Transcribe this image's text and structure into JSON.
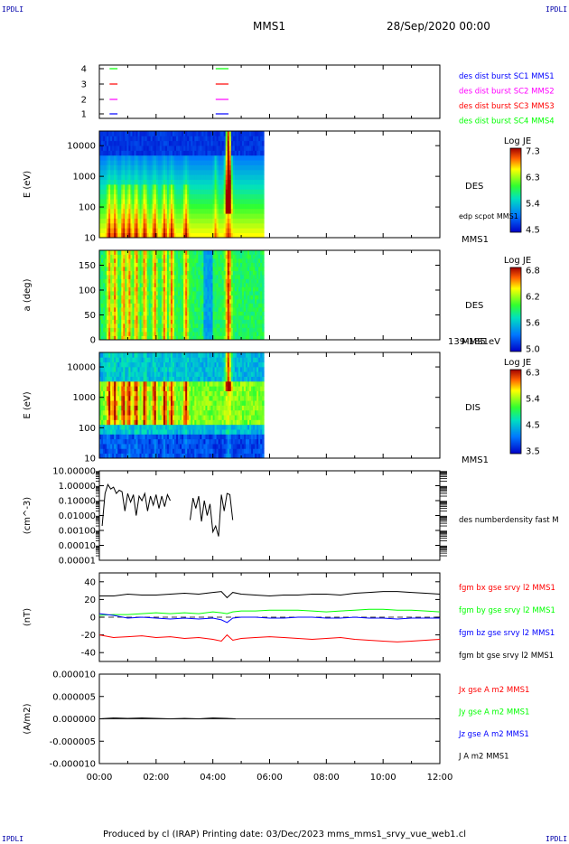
{
  "header": {
    "corner_label": "IPDLI",
    "spacecraft": "MMS1",
    "date": "28/Sep/2020 00:00"
  },
  "footer": {
    "text": "Produced by cl (IRAP)   Printing date: 03/Dec/2023   mms_mms1_srvy_vue_web1.cl"
  },
  "colors": {
    "blue": "#0000ff",
    "magenta": "#ff00ff",
    "red": "#ff0000",
    "green": "#00ff00",
    "black": "#000000"
  },
  "chart_data": [
    {
      "type": "line",
      "name": "availability",
      "y_ticks": [
        "4",
        "3",
        "2",
        "1"
      ],
      "legend": [
        {
          "label": "des dist burst SC1 MMS1",
          "color": "#0000ff"
        },
        {
          "label": "des dist burst SC2 MMS2",
          "color": "#ff00ff"
        },
        {
          "label": "des dist burst SC3 MMS3",
          "color": "#ff0000"
        },
        {
          "label": "des dist burst SC4 MMS4",
          "color": "#00ff00"
        }
      ],
      "intervals_hours": [
        [
          0.36,
          0.64
        ],
        [
          4.1,
          4.55
        ]
      ]
    },
    {
      "type": "heatmap",
      "name": "des-energy",
      "ylabel": "E (eV)",
      "yscale": "log",
      "ylim": [
        10,
        30000
      ],
      "y_ticks": [
        "10000",
        "1000",
        "100",
        "10"
      ],
      "data_end_hour": 5.8,
      "label": "DES",
      "overlay_label": "edp scpot MMS1",
      "right_label": "MMS1",
      "colorbar": {
        "title": "Log JE",
        "ticks": [
          "7.3",
          "6.3",
          "5.4",
          "4.5"
        ]
      }
    },
    {
      "type": "heatmap",
      "name": "des-pitch",
      "ylabel": "a (deg)",
      "ylim": [
        0,
        180
      ],
      "y_ticks": [
        "150",
        "100",
        "50",
        "0"
      ],
      "data_end_hour": 5.8,
      "label": "DES",
      "right_label": "MMS1",
      "range_label": "139-185 eV",
      "colorbar": {
        "title": "Log JE",
        "ticks": [
          "6.8",
          "6.2",
          "5.6",
          "5.0"
        ]
      }
    },
    {
      "type": "heatmap",
      "name": "dis-energy",
      "ylabel": "E (eV)",
      "yscale": "log",
      "ylim": [
        10,
        30000
      ],
      "y_ticks": [
        "10000",
        "1000",
        "100",
        "10"
      ],
      "data_end_hour": 5.8,
      "label": "DIS",
      "right_label": "MMS1",
      "colorbar": {
        "title": "Log JE",
        "ticks": [
          "6.3",
          "5.4",
          "4.5",
          "3.5"
        ]
      }
    },
    {
      "type": "line",
      "name": "density",
      "ylabel": "(cm^-3)",
      "yscale": "log",
      "ylim": [
        1e-05,
        10
      ],
      "y_ticks": [
        "10.00000",
        "1.00000",
        "0.10000",
        "0.01000",
        "0.00100",
        "0.00010",
        "0.00001"
      ],
      "series": [
        {
          "name": "des numberdensity fast M",
          "color": "#000000",
          "x": [
            0.1,
            0.2,
            0.3,
            0.4,
            0.5,
            0.6,
            0.7,
            0.8,
            0.9,
            1.0,
            1.1,
            1.2,
            1.3,
            1.4,
            1.5,
            1.6,
            1.7,
            1.8,
            1.9,
            2.0,
            2.1,
            2.2,
            2.3,
            2.4,
            2.5
          ],
          "y": [
            0.002,
            0.3,
            1.2,
            0.6,
            0.8,
            0.3,
            0.5,
            0.4,
            0.02,
            0.3,
            0.08,
            0.25,
            0.01,
            0.2,
            0.1,
            0.3,
            0.02,
            0.2,
            0.05,
            0.25,
            0.03,
            0.2,
            0.04,
            0.25,
            0.1
          ]
        },
        {
          "name": "",
          "color": "#000000",
          "x": [
            3.2,
            3.3,
            3.4,
            3.5,
            3.6,
            3.7,
            3.8,
            3.9,
            4.0,
            4.1,
            4.2,
            4.3,
            4.4,
            4.5,
            4.6,
            4.7
          ],
          "y": [
            0.005,
            0.15,
            0.03,
            0.2,
            0.004,
            0.1,
            0.01,
            0.06,
            0.0008,
            0.002,
            0.0004,
            0.25,
            0.02,
            0.3,
            0.25,
            0.005
          ]
        }
      ]
    },
    {
      "type": "line",
      "name": "magnetic-field",
      "ylabel": "(nT)",
      "ylim": [
        -50,
        50
      ],
      "y_ticks": [
        "40",
        "20",
        "0",
        "-20",
        "-40"
      ],
      "x": [
        0,
        0.5,
        1,
        1.5,
        2,
        2.5,
        3,
        3.5,
        4,
        4.3,
        4.5,
        4.7,
        5,
        5.5,
        6,
        6.5,
        7,
        7.5,
        8,
        8.5,
        9,
        9.5,
        10,
        10.5,
        11,
        11.5,
        12
      ],
      "series": [
        {
          "name": "fgm bx gse srvy l2 MMS1",
          "color": "#ff0000",
          "y": [
            -20,
            -23,
            -22,
            -21,
            -23,
            -22,
            -24,
            -23,
            -25,
            -27,
            -20,
            -26,
            -24,
            -23,
            -22,
            -23,
            -24,
            -25,
            -24,
            -23,
            -25,
            -26,
            -27,
            -28,
            -27,
            -26,
            -25
          ]
        },
        {
          "name": "fgm by gse srvy l2 MMS1",
          "color": "#00ff00",
          "y": [
            2,
            3,
            3,
            4,
            5,
            4,
            5,
            4,
            6,
            5,
            4,
            6,
            7,
            7,
            8,
            8,
            8,
            7,
            6,
            7,
            8,
            9,
            9,
            8,
            8,
            7,
            6
          ]
        },
        {
          "name": "fgm bz gse srvy l2 MMS1",
          "color": "#0000ff",
          "y": [
            4,
            2,
            -1,
            0,
            -1,
            -2,
            -1,
            -2,
            -1,
            -3,
            -6,
            -1,
            0,
            0,
            -1,
            -1,
            0,
            0,
            -1,
            -1,
            0,
            -1,
            -1,
            -2,
            -1,
            -1,
            -1
          ]
        },
        {
          "name": "fgm bt gse srvy l2 MMS1",
          "color": "#000000",
          "y": [
            24,
            24,
            26,
            25,
            25,
            26,
            27,
            26,
            28,
            29,
            22,
            28,
            26,
            25,
            24,
            25,
            25,
            26,
            26,
            25,
            27,
            28,
            29,
            29,
            28,
            27,
            26
          ]
        }
      ]
    },
    {
      "type": "line",
      "name": "current-density",
      "ylabel": "(A/m2)",
      "ylim": [
        -1e-05,
        1e-05
      ],
      "y_ticks": [
        "0.000010",
        "0.000005",
        "0.000000",
        "-0.000005",
        "-0.000010"
      ],
      "x_ticks": [
        "00:00",
        "02:00",
        "04:00",
        "06:00",
        "08:00",
        "10:00",
        "12:00"
      ],
      "xlim_hours": [
        0,
        12
      ],
      "series": [
        {
          "name": "Jx gse A m2 MMS1",
          "color": "#ff0000"
        },
        {
          "name": "Jy gse A m2 MMS1",
          "color": "#00ff00"
        },
        {
          "name": "Jz gse A m2 MMS1",
          "color": "#0000ff"
        },
        {
          "name": "J A m2 MMS1",
          "color": "#000000"
        }
      ],
      "trace_x": [
        0,
        0.5,
        1,
        1.5,
        2,
        2.5,
        3,
        3.5,
        4,
        4.5,
        4.8
      ],
      "trace_y": [
        0,
        2e-07,
        1e-07,
        2e-07,
        1e-07,
        0,
        1e-07,
        0,
        2e-07,
        1e-07,
        0
      ]
    }
  ]
}
